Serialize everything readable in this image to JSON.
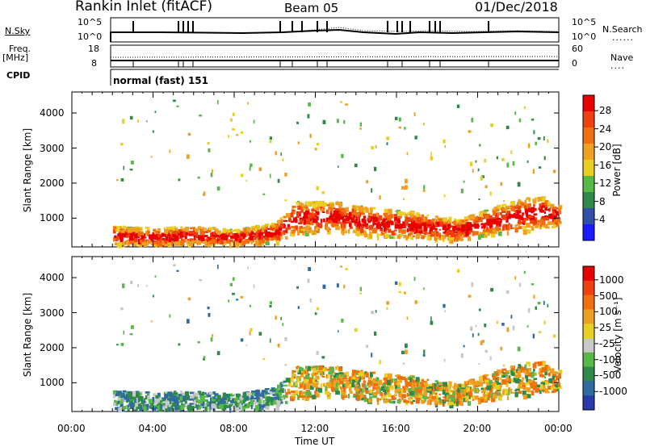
{
  "header": {
    "station": "Rankin Inlet (fitACF)",
    "beam": "Beam 05",
    "date": "01/Dec/2018"
  },
  "panels": {
    "nsky_label": "N.Sky",
    "nsky_ticks": [
      "10^5",
      "10^0"
    ],
    "nsearch_label": "N.Search",
    "freq_label": "Freq.",
    "freq_unit": "[MHz]",
    "freq_ticks": [
      "18",
      "8"
    ],
    "nave_label": "Nave",
    "nave_ticks": [
      "60",
      "0"
    ],
    "cpid_label": "CPID",
    "cpid_value": "normal (fast) 151"
  },
  "colors": {
    "power_scale": [
      "#1a1aff",
      "#2f4fa8",
      "#2f8a4a",
      "#58b848",
      "#e8d020",
      "#f0a020",
      "#f07010",
      "#f04010",
      "#e80000"
    ],
    "velocity_scale": [
      "#2a3aa8",
      "#2f6aa0",
      "#2f8a4a",
      "#58b848",
      "#c8c8c8",
      "#e8d020",
      "#f0a020",
      "#f07010",
      "#f04010",
      "#e80000"
    ]
  },
  "chart_data": [
    {
      "type": "heatmap",
      "quantity": "power",
      "xlabel": "",
      "ylabel": "Slant Range [km]",
      "xlim": [
        0,
        24
      ],
      "ylim": [
        180,
        4600
      ],
      "yticks": [
        "4000",
        "3000",
        "2000",
        "1000"
      ],
      "colorbar_label": "Power [dB]",
      "colorbar_ticks": [
        "28",
        "24",
        "20",
        "16",
        "12",
        "8",
        "4"
      ],
      "scatter_echo_band": [
        {
          "t": 2.0,
          "r_low": 300,
          "r_high": 800
        },
        {
          "t": 4.0,
          "r_low": 250,
          "r_high": 750
        },
        {
          "t": 6.0,
          "r_low": 300,
          "r_high": 800
        },
        {
          "t": 8.0,
          "r_low": 280,
          "r_high": 700
        },
        {
          "t": 10.0,
          "r_low": 350,
          "r_high": 900
        },
        {
          "t": 11.0,
          "r_low": 600,
          "r_high": 1500
        },
        {
          "t": 13.0,
          "r_low": 650,
          "r_high": 1500
        },
        {
          "t": 15.0,
          "r_low": 500,
          "r_high": 1300
        },
        {
          "t": 17.0,
          "r_low": 450,
          "r_high": 1200
        },
        {
          "t": 19.0,
          "r_low": 400,
          "r_high": 1000
        },
        {
          "t": 21.0,
          "r_low": 600,
          "r_high": 1400
        },
        {
          "t": 23.0,
          "r_low": 700,
          "r_high": 1700
        },
        {
          "t": 24.0,
          "r_low": 800,
          "r_high": 1400
        }
      ]
    },
    {
      "type": "heatmap",
      "quantity": "velocity",
      "xlabel": "Time UT",
      "ylabel": "Slant Range [km]",
      "xlim": [
        0,
        24
      ],
      "ylim": [
        180,
        4600
      ],
      "xticks": [
        "00:00",
        "04:00",
        "08:00",
        "12:00",
        "16:00",
        "20:00",
        "00:00"
      ],
      "yticks": [
        "4000",
        "3000",
        "2000",
        "1000"
      ],
      "colorbar_label": "Velocity [m s⁻¹]",
      "colorbar_ticks": [
        "1000",
        "500",
        "100",
        "25",
        "-25",
        "-100",
        "-500",
        "-1000"
      ]
    }
  ]
}
